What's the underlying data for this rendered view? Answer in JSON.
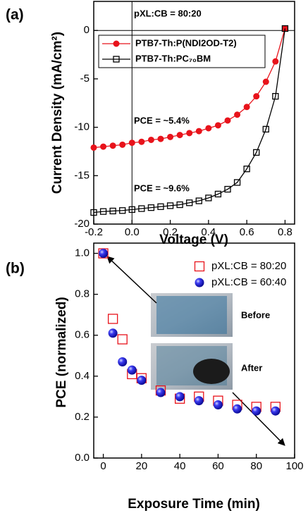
{
  "chart_data": [
    {
      "type": "line",
      "panel": "(a)",
      "x_label": "Voltage (V)",
      "y_label": "Current Density (mA/cm²)",
      "annotations": [
        "pXL:CB = 80:20",
        "PCE = ~5.4%",
        "PCE = ~9.6%"
      ],
      "x": [
        -0.2,
        -0.15,
        -0.1,
        -0.05,
        0,
        0.05,
        0.1,
        0.15,
        0.2,
        0.25,
        0.3,
        0.35,
        0.4,
        0.45,
        0.5,
        0.55,
        0.6,
        0.65,
        0.7,
        0.75,
        0.8
      ],
      "series": [
        {
          "name": "PTB7-Th:P(NDI2OD-T2)",
          "color": "#e8131b",
          "marker": "circle",
          "filled": true,
          "values": [
            -12.1,
            -12.0,
            -11.9,
            -11.8,
            -11.6,
            -11.5,
            -11.3,
            -11.2,
            -11.0,
            -10.8,
            -10.6,
            -10.4,
            -10.1,
            -9.8,
            -9.3,
            -8.7,
            -7.9,
            -6.8,
            -5.3,
            -3.2,
            0.2
          ]
        },
        {
          "name": "PTB7-Th:PC₇₀BM",
          "color": "#000000",
          "marker": "square",
          "filled": false,
          "values": [
            -18.8,
            -18.7,
            -18.65,
            -18.6,
            -18.5,
            -18.4,
            -18.3,
            -18.2,
            -18.1,
            -18.0,
            -17.8,
            -17.6,
            -17.3,
            -16.9,
            -16.4,
            -15.7,
            -14.3,
            -12.6,
            -10.2,
            -6.8,
            0.2
          ]
        }
      ],
      "xlim": [
        -0.2,
        0.85
      ],
      "ylim": [
        -20,
        3
      ],
      "xticks": [
        -0.2,
        {
          "value": 0,
          "label": "0.0"
        },
        0.2,
        0.4,
        0.6,
        0.8
      ],
      "yticks": [
        0,
        -5,
        -10,
        -15,
        -20
      ],
      "zero_lines": true,
      "legend": "top-left",
      "legend_box": true
    },
    {
      "type": "scatter",
      "panel": "(b)",
      "x_label": "Exposure Time (min)",
      "y_label": "PCE (normalized)",
      "image_labels": [
        "Before",
        "After"
      ],
      "x": [
        0,
        5,
        10,
        15,
        20,
        30,
        40,
        50,
        60,
        70,
        80,
        90
      ],
      "series": [
        {
          "name": "pXL:CB = 80:20",
          "color": "#e8131b",
          "marker": "square",
          "filled": false,
          "values": [
            1.0,
            0.68,
            0.58,
            0.41,
            0.39,
            0.33,
            0.29,
            0.3,
            0.28,
            0.26,
            0.25,
            0.25
          ]
        },
        {
          "name": "pXL:CB = 60:40",
          "color": "#1010e0",
          "marker": "sphere",
          "filled": true,
          "values": [
            1.0,
            0.61,
            0.47,
            0.43,
            0.38,
            0.32,
            0.3,
            0.28,
            0.26,
            0.24,
            0.23,
            0.23
          ]
        }
      ],
      "xlim": [
        -5,
        100
      ],
      "ylim": [
        0,
        1.05
      ],
      "xticks": [
        0,
        20,
        40,
        60,
        80,
        100
      ],
      "yticks": [
        {
          "value": 0,
          "label": "0.0"
        },
        0.2,
        0.4,
        0.6,
        0.8,
        {
          "value": 1,
          "label": "1.0"
        }
      ],
      "zero_lines": false,
      "legend": "top-right",
      "legend_box": false
    }
  ]
}
